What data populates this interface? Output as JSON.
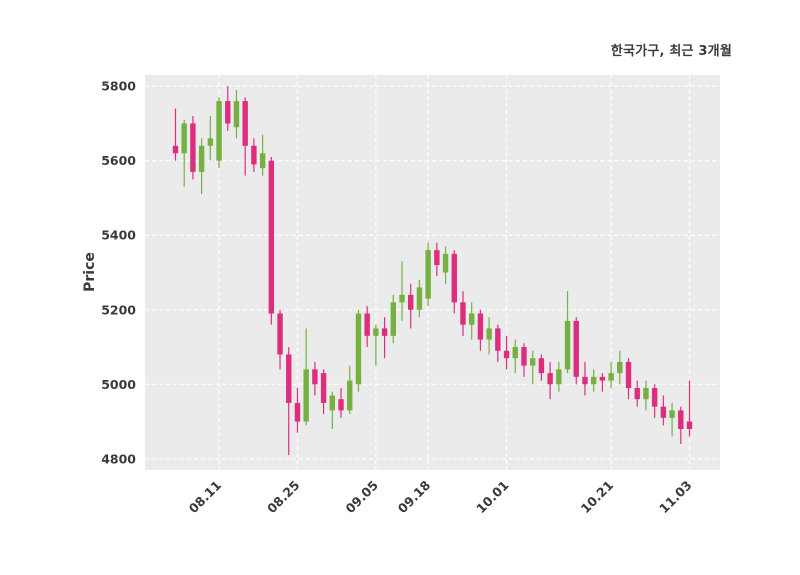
{
  "figure": {
    "title": "한국가구, 최근 3개월",
    "ylabel": "Price"
  },
  "chart_data": {
    "type": "candlestick",
    "title": "한국가구, 최근 3개월",
    "ylabel": "Price",
    "xlabel": "",
    "legend": "none",
    "grid": "dashed-white-on-gray",
    "plot_bg_color": "#ebebeb",
    "up_color": "#76b041",
    "down_color": "#dd2e7e",
    "tick_color": "#3a3a3a",
    "ylim": [
      4770,
      5830
    ],
    "yticks": [
      4800,
      5000,
      5200,
      5400,
      5600,
      5800
    ],
    "xticks": [
      {
        "index": 5,
        "label": "08.11"
      },
      {
        "index": 14,
        "label": "08.25"
      },
      {
        "index": 23,
        "label": "09.05"
      },
      {
        "index": 29,
        "label": "09.18"
      },
      {
        "index": 38,
        "label": "10.01"
      },
      {
        "index": 50,
        "label": "10.21"
      },
      {
        "index": 59,
        "label": "11.03"
      }
    ],
    "candles": [
      {
        "date": "08.04",
        "open": 5640,
        "high": 5740,
        "low": 5600,
        "close": 5620
      },
      {
        "date": "08.05",
        "open": 5620,
        "high": 5710,
        "low": 5530,
        "close": 5700
      },
      {
        "date": "08.06",
        "open": 5700,
        "high": 5720,
        "low": 5550,
        "close": 5570
      },
      {
        "date": "08.07",
        "open": 5570,
        "high": 5660,
        "low": 5510,
        "close": 5640
      },
      {
        "date": "08.08",
        "open": 5640,
        "high": 5720,
        "low": 5600,
        "close": 5660
      },
      {
        "date": "08.11",
        "open": 5600,
        "high": 5770,
        "low": 5580,
        "close": 5760
      },
      {
        "date": "08.12",
        "open": 5760,
        "high": 5800,
        "low": 5680,
        "close": 5700
      },
      {
        "date": "08.13",
        "open": 5690,
        "high": 5790,
        "low": 5660,
        "close": 5760
      },
      {
        "date": "08.14",
        "open": 5760,
        "high": 5770,
        "low": 5560,
        "close": 5640
      },
      {
        "date": "08.18",
        "open": 5640,
        "high": 5660,
        "low": 5570,
        "close": 5590
      },
      {
        "date": "08.19",
        "open": 5580,
        "high": 5670,
        "low": 5560,
        "close": 5620
      },
      {
        "date": "08.20",
        "open": 5600,
        "high": 5610,
        "low": 5160,
        "close": 5190
      },
      {
        "date": "08.21",
        "open": 5190,
        "high": 5200,
        "low": 5040,
        "close": 5080
      },
      {
        "date": "08.22",
        "open": 5080,
        "high": 5100,
        "low": 4810,
        "close": 4950
      },
      {
        "date": "08.25",
        "open": 4950,
        "high": 4990,
        "low": 4870,
        "close": 4900
      },
      {
        "date": "08.26",
        "open": 4900,
        "high": 5150,
        "low": 4890,
        "close": 5040
      },
      {
        "date": "08.27",
        "open": 5040,
        "high": 5060,
        "low": 4970,
        "close": 5000
      },
      {
        "date": "08.28",
        "open": 5030,
        "high": 5040,
        "low": 4920,
        "close": 4950
      },
      {
        "date": "08.29",
        "open": 4930,
        "high": 4980,
        "low": 4880,
        "close": 4970
      },
      {
        "date": "09.01",
        "open": 4960,
        "high": 4990,
        "low": 4910,
        "close": 4930
      },
      {
        "date": "09.02",
        "open": 4930,
        "high": 5050,
        "low": 4920,
        "close": 5010
      },
      {
        "date": "09.03",
        "open": 5000,
        "high": 5200,
        "low": 4980,
        "close": 5190
      },
      {
        "date": "09.04",
        "open": 5190,
        "high": 5210,
        "low": 5100,
        "close": 5130
      },
      {
        "date": "09.05",
        "open": 5130,
        "high": 5160,
        "low": 5050,
        "close": 5150
      },
      {
        "date": "09.11",
        "open": 5150,
        "high": 5180,
        "low": 5070,
        "close": 5130
      },
      {
        "date": "09.12",
        "open": 5130,
        "high": 5240,
        "low": 5110,
        "close": 5220
      },
      {
        "date": "09.15",
        "open": 5220,
        "high": 5330,
        "low": 5170,
        "close": 5240
      },
      {
        "date": "09.16",
        "open": 5240,
        "high": 5270,
        "low": 5150,
        "close": 5200
      },
      {
        "date": "09.17",
        "open": 5200,
        "high": 5280,
        "low": 5180,
        "close": 5260
      },
      {
        "date": "09.18",
        "open": 5230,
        "high": 5380,
        "low": 5210,
        "close": 5360
      },
      {
        "date": "09.19",
        "open": 5360,
        "high": 5380,
        "low": 5290,
        "close": 5320
      },
      {
        "date": "09.22",
        "open": 5300,
        "high": 5370,
        "low": 5270,
        "close": 5350
      },
      {
        "date": "09.23",
        "open": 5350,
        "high": 5360,
        "low": 5190,
        "close": 5220
      },
      {
        "date": "09.24",
        "open": 5220,
        "high": 5250,
        "low": 5130,
        "close": 5160
      },
      {
        "date": "09.25",
        "open": 5160,
        "high": 5220,
        "low": 5120,
        "close": 5190
      },
      {
        "date": "09.26",
        "open": 5190,
        "high": 5200,
        "low": 5090,
        "close": 5120
      },
      {
        "date": "09.29",
        "open": 5120,
        "high": 5180,
        "low": 5080,
        "close": 5150
      },
      {
        "date": "09.30",
        "open": 5150,
        "high": 5160,
        "low": 5060,
        "close": 5090
      },
      {
        "date": "10.01",
        "open": 5090,
        "high": 5130,
        "low": 5040,
        "close": 5070
      },
      {
        "date": "10.02",
        "open": 5070,
        "high": 5120,
        "low": 5030,
        "close": 5100
      },
      {
        "date": "10.06",
        "open": 5100,
        "high": 5110,
        "low": 5020,
        "close": 5050
      },
      {
        "date": "10.07",
        "open": 5050,
        "high": 5090,
        "low": 5000,
        "close": 5070
      },
      {
        "date": "10.08",
        "open": 5070,
        "high": 5080,
        "low": 5010,
        "close": 5030
      },
      {
        "date": "10.10",
        "open": 5030,
        "high": 5060,
        "low": 4960,
        "close": 5000
      },
      {
        "date": "10.13",
        "open": 5000,
        "high": 5060,
        "low": 4980,
        "close": 5040
      },
      {
        "date": "10.14",
        "open": 5040,
        "high": 5250,
        "low": 5030,
        "close": 5170
      },
      {
        "date": "10.15",
        "open": 5170,
        "high": 5180,
        "low": 5000,
        "close": 5020
      },
      {
        "date": "10.16",
        "open": 5020,
        "high": 5060,
        "low": 4970,
        "close": 5000
      },
      {
        "date": "10.17",
        "open": 5000,
        "high": 5040,
        "low": 4980,
        "close": 5020
      },
      {
        "date": "10.20",
        "open": 5020,
        "high": 5030,
        "low": 4980,
        "close": 5010
      },
      {
        "date": "10.21",
        "open": 5010,
        "high": 5060,
        "low": 4990,
        "close": 5030
      },
      {
        "date": "10.22",
        "open": 5030,
        "high": 5090,
        "low": 5000,
        "close": 5060
      },
      {
        "date": "10.23",
        "open": 5060,
        "high": 5070,
        "low": 4960,
        "close": 4990
      },
      {
        "date": "10.24",
        "open": 4990,
        "high": 5010,
        "low": 4940,
        "close": 4960
      },
      {
        "date": "10.27",
        "open": 4960,
        "high": 5010,
        "low": 4930,
        "close": 4990
      },
      {
        "date": "10.28",
        "open": 4990,
        "high": 5000,
        "low": 4910,
        "close": 4940
      },
      {
        "date": "10.29",
        "open": 4940,
        "high": 4970,
        "low": 4890,
        "close": 4910
      },
      {
        "date": "10.30",
        "open": 4910,
        "high": 4950,
        "low": 4860,
        "close": 4930
      },
      {
        "date": "10.31",
        "open": 4930,
        "high": 4940,
        "low": 4840,
        "close": 4880
      },
      {
        "date": "11.03",
        "open": 4900,
        "high": 5010,
        "low": 4860,
        "close": 4880
      }
    ]
  }
}
